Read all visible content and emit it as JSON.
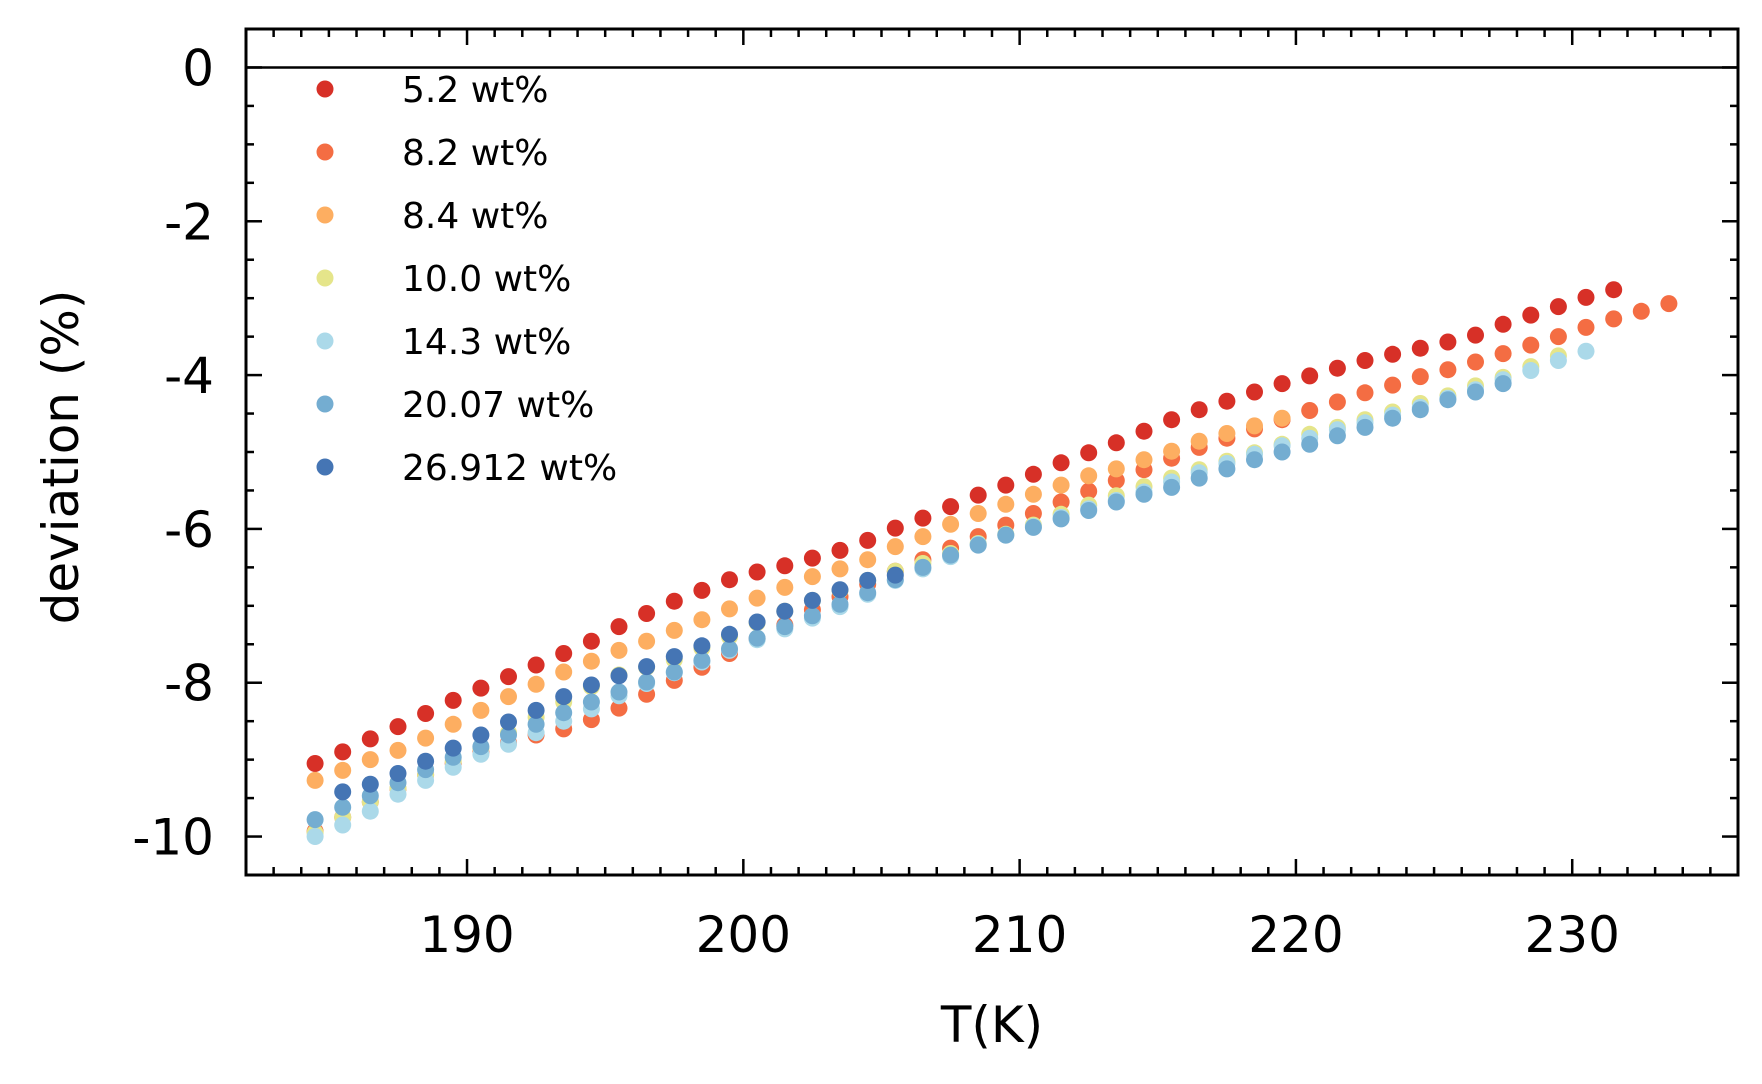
{
  "chart_data": {
    "type": "scatter",
    "xlabel": "T(K)",
    "ylabel": "deviation (%)",
    "xlim": [
      182,
      236
    ],
    "ylim": [
      -10.5,
      0.5
    ],
    "xticks": [
      190,
      200,
      210,
      220,
      230
    ],
    "xtick_labels": [
      "190",
      "200",
      "210",
      "220",
      "230"
    ],
    "yticks": [
      0,
      -2,
      -4,
      -6,
      -8,
      -10
    ],
    "ytick_labels": [
      "0",
      "-2",
      "-4",
      "-6",
      "-8",
      "-10"
    ],
    "reference_line_y": 0,
    "grid": false,
    "legend_position": "top-left",
    "series": [
      {
        "name": "5.2 wt%",
        "color": "#d73027",
        "x": [
          184.5,
          185.5,
          186.5,
          187.5,
          188.5,
          189.5,
          190.5,
          191.5,
          192.5,
          193.5,
          194.5,
          195.5,
          196.5,
          197.5,
          198.5,
          199.5,
          200.5,
          201.5,
          202.5,
          203.5,
          204.5,
          205.5,
          206.5,
          207.5,
          208.5,
          209.5,
          210.5,
          211.5,
          212.5,
          213.5,
          214.5,
          215.5,
          216.5,
          217.5,
          218.5,
          219.5,
          220.5,
          221.5,
          222.5,
          223.5,
          224.5,
          225.5,
          226.5,
          227.5,
          228.5,
          229.5,
          230.5,
          231.5
        ],
        "y": [
          -9.05,
          -8.9,
          -8.73,
          -8.57,
          -8.4,
          -8.23,
          -8.07,
          -7.92,
          -7.77,
          -7.62,
          -7.46,
          -7.27,
          -7.1,
          -6.94,
          -6.8,
          -6.66,
          -6.56,
          -6.48,
          -6.38,
          -6.28,
          -6.15,
          -5.99,
          -5.86,
          -5.71,
          -5.56,
          -5.43,
          -5.29,
          -5.14,
          -5.01,
          -4.88,
          -4.73,
          -4.58,
          -4.45,
          -4.34,
          -4.22,
          -4.11,
          -4.01,
          -3.91,
          -3.81,
          -3.73,
          -3.65,
          -3.57,
          -3.48,
          -3.34,
          -3.22,
          -3.11,
          -2.99,
          -2.89
        ]
      },
      {
        "name": "8.2 wt%",
        "color": "#f46d43",
        "x": [
          184.5,
          185.5,
          186.5,
          187.5,
          188.5,
          189.5,
          190.5,
          191.5,
          192.5,
          193.5,
          194.5,
          195.5,
          196.5,
          197.5,
          198.5,
          199.5,
          200.5,
          201.5,
          202.5,
          203.5,
          204.5,
          205.5,
          206.5,
          207.5,
          208.5,
          209.5,
          210.5,
          211.5,
          212.5,
          213.5,
          214.5,
          215.5,
          216.5,
          217.5,
          218.5,
          219.5,
          220.5,
          221.5,
          222.5,
          223.5,
          224.5,
          225.5,
          226.5,
          227.5,
          228.5,
          229.5,
          230.5,
          231.5,
          232.5,
          233.5
        ],
        "y": [
          -9.93,
          -9.75,
          -9.55,
          -9.38,
          -9.2,
          -9.05,
          -8.9,
          -8.78,
          -8.68,
          -8.6,
          -8.48,
          -8.33,
          -8.15,
          -7.97,
          -7.8,
          -7.62,
          -7.43,
          -7.25,
          -7.05,
          -6.88,
          -6.72,
          -6.55,
          -6.4,
          -6.25,
          -6.1,
          -5.95,
          -5.8,
          -5.65,
          -5.51,
          -5.37,
          -5.23,
          -5.08,
          -4.94,
          -4.82,
          -4.7,
          -4.58,
          -4.46,
          -4.35,
          -4.23,
          -4.13,
          -4.02,
          -3.93,
          -3.83,
          -3.72,
          -3.61,
          -3.5,
          -3.38,
          -3.27,
          -3.17,
          -3.07
        ]
      },
      {
        "name": "8.4 wt%",
        "color": "#fdae61",
        "x": [
          184.5,
          185.5,
          186.5,
          187.5,
          188.5,
          189.5,
          190.5,
          191.5,
          192.5,
          193.5,
          194.5,
          195.5,
          196.5,
          197.5,
          198.5,
          199.5,
          200.5,
          201.5,
          202.5,
          203.5,
          204.5,
          205.5,
          206.5,
          207.5,
          208.5,
          209.5,
          210.5,
          211.5,
          212.5,
          213.5,
          214.5,
          215.5,
          216.5,
          217.5,
          218.5,
          219.5
        ],
        "y": [
          -9.27,
          -9.14,
          -9.0,
          -8.88,
          -8.72,
          -8.54,
          -8.36,
          -8.18,
          -8.02,
          -7.86,
          -7.72,
          -7.58,
          -7.46,
          -7.32,
          -7.18,
          -7.04,
          -6.9,
          -6.76,
          -6.62,
          -6.52,
          -6.4,
          -6.23,
          -6.1,
          -5.94,
          -5.8,
          -5.68,
          -5.55,
          -5.43,
          -5.31,
          -5.22,
          -5.1,
          -4.99,
          -4.86,
          -4.76,
          -4.66,
          -4.56
        ]
      },
      {
        "name": "10.0 wt%",
        "color": "#e5e58a",
        "x": [
          184.5,
          185.5,
          186.5,
          187.5,
          188.5,
          189.5,
          190.5,
          191.5,
          192.5,
          193.5,
          194.5,
          195.5,
          196.5,
          197.5,
          198.5,
          199.5,
          200.5,
          201.5,
          202.5,
          203.5,
          204.5,
          205.5,
          206.5,
          207.5,
          208.5,
          209.5,
          210.5,
          211.5,
          212.5,
          213.5,
          214.5,
          215.5,
          216.5,
          217.5,
          218.5,
          219.5,
          220.5,
          221.5,
          222.5,
          223.5,
          224.5,
          225.5,
          226.5,
          227.5,
          228.5,
          229.5
        ],
        "y": [
          -9.95,
          -9.75,
          -9.55,
          -9.37,
          -9.2,
          -9.02,
          -8.85,
          -8.65,
          -8.45,
          -8.25,
          -8.05,
          -7.9,
          -7.8,
          -7.7,
          -7.55,
          -7.4,
          -7.22,
          -7.07,
          -6.93,
          -6.8,
          -6.67,
          -6.55,
          -6.45,
          -6.32,
          -6.19,
          -6.07,
          -5.95,
          -5.81,
          -5.69,
          -5.57,
          -5.45,
          -5.34,
          -5.23,
          -5.12,
          -5.01,
          -4.9,
          -4.77,
          -4.68,
          -4.58,
          -4.48,
          -4.37,
          -4.27,
          -4.14,
          -4.03,
          -3.89,
          -3.75
        ]
      },
      {
        "name": "14.3 wt%",
        "color": "#abd9e9",
        "x": [
          184.5,
          185.5,
          186.5,
          187.5,
          188.5,
          189.5,
          190.5,
          191.5,
          192.5,
          193.5,
          194.5,
          195.5,
          196.5,
          197.5,
          198.5,
          199.5,
          200.5,
          201.5,
          202.5,
          203.5,
          204.5,
          205.5,
          206.5,
          207.5,
          208.5,
          209.5,
          210.5,
          211.5,
          212.5,
          213.5,
          214.5,
          215.5,
          216.5,
          217.5,
          218.5,
          219.5,
          220.5,
          221.5,
          222.5,
          223.5,
          224.5,
          225.5,
          226.5,
          227.5,
          228.5,
          229.5,
          230.5
        ],
        "y": [
          -10.0,
          -9.85,
          -9.67,
          -9.45,
          -9.27,
          -9.1,
          -8.93,
          -8.8,
          -8.65,
          -8.5,
          -8.34,
          -8.17,
          -8.01,
          -7.87,
          -7.73,
          -7.58,
          -7.44,
          -7.3,
          -7.16,
          -7.01,
          -6.85,
          -6.67,
          -6.52,
          -6.36,
          -6.2,
          -6.08,
          -5.97,
          -5.85,
          -5.74,
          -5.63,
          -5.52,
          -5.39,
          -5.27,
          -5.15,
          -5.03,
          -4.92,
          -4.82,
          -4.71,
          -4.62,
          -4.52,
          -4.42,
          -4.3,
          -4.19,
          -4.06,
          -3.94,
          -3.81,
          -3.69
        ]
      },
      {
        "name": "20.07 wt%",
        "color": "#74add1",
        "x": [
          184.5,
          185.5,
          186.5,
          187.5,
          188.5,
          189.5,
          190.5,
          191.5,
          192.5,
          193.5,
          194.5,
          195.5,
          196.5,
          197.5,
          198.5,
          199.5,
          200.5,
          201.5,
          202.5,
          203.5,
          204.5,
          205.5,
          206.5,
          207.5,
          208.5,
          209.5,
          210.5,
          211.5,
          212.5,
          213.5,
          214.5,
          215.5,
          216.5,
          217.5,
          218.5,
          219.5,
          220.5,
          221.5,
          222.5,
          223.5,
          224.5,
          225.5,
          226.5,
          227.5
        ],
        "y": [
          -9.78,
          -9.62,
          -9.47,
          -9.3,
          -9.13,
          -8.97,
          -8.83,
          -8.68,
          -8.54,
          -8.39,
          -8.25,
          -8.12,
          -7.99,
          -7.86,
          -7.71,
          -7.56,
          -7.42,
          -7.27,
          -7.13,
          -6.98,
          -6.83,
          -6.66,
          -6.5,
          -6.34,
          -6.21,
          -6.08,
          -5.98,
          -5.87,
          -5.76,
          -5.65,
          -5.55,
          -5.46,
          -5.34,
          -5.22,
          -5.1,
          -5.0,
          -4.9,
          -4.79,
          -4.68,
          -4.56,
          -4.45,
          -4.32,
          -4.22,
          -4.11
        ]
      },
      {
        "name": "26.912 wt%",
        "color": "#4575b4",
        "x": [
          185.5,
          186.5,
          187.5,
          188.5,
          189.5,
          190.5,
          191.5,
          192.5,
          193.5,
          194.5,
          195.5,
          196.5,
          197.5,
          198.5,
          199.5,
          200.5,
          201.5,
          202.5,
          203.5,
          204.5,
          205.5
        ],
        "y": [
          -9.42,
          -9.32,
          -9.18,
          -9.02,
          -8.85,
          -8.68,
          -8.51,
          -8.36,
          -8.18,
          -8.03,
          -7.91,
          -7.79,
          -7.66,
          -7.52,
          -7.37,
          -7.21,
          -7.07,
          -6.93,
          -6.79,
          -6.67,
          -6.6
        ]
      }
    ]
  }
}
